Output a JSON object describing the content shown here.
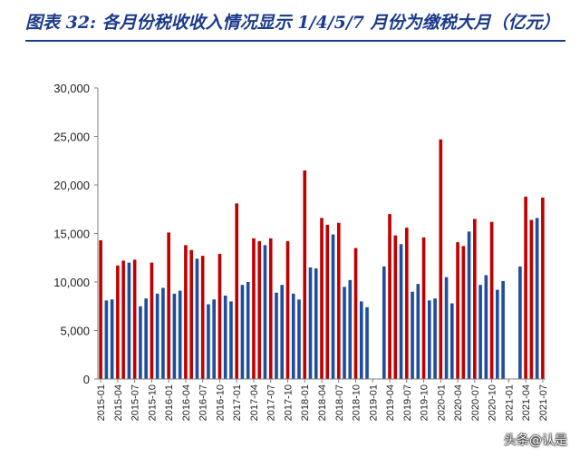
{
  "title": "图表 32:  各月份税收收入情况显示 1/4/5/7 月份为缴税大月（亿元）",
  "watermark": "头条@认是",
  "chart_data": {
    "type": "bar",
    "title": "图表 32:  各月份税收收入情况显示 1/4/5/7 月份为缴税大月（亿元）",
    "xlabel": "",
    "ylabel": "",
    "ylim": [
      0,
      30000
    ],
    "yticks": [
      "0",
      "5,000",
      "10,000",
      "15,000",
      "20,000",
      "25,000",
      "30,000"
    ],
    "grid": false,
    "legend": "none",
    "colors": {
      "major_month": "#c00000",
      "other_month": "#1f4e9c"
    },
    "x_tick_labels": [
      "2015-01",
      "2015-04",
      "2015-07",
      "2015-10",
      "2016-01",
      "2016-04",
      "2016-07",
      "2016-10",
      "2017-01",
      "2017-04",
      "2017-07",
      "2017-10",
      "2018-01",
      "2018-04",
      "2018-07",
      "2018-10",
      "2019-01",
      "2019-04",
      "2019-07",
      "2019-10",
      "2020-01",
      "2020-04",
      "2020-07",
      "2020-10",
      "2021-01",
      "2021-04",
      "2021-07"
    ],
    "categories": [
      "2015-01",
      "2015-02",
      "2015-03",
      "2015-04",
      "2015-05",
      "2015-06",
      "2015-07",
      "2015-08",
      "2015-09",
      "2015-10",
      "2015-11",
      "2015-12",
      "2016-01",
      "2016-02",
      "2016-03",
      "2016-04",
      "2016-05",
      "2016-06",
      "2016-07",
      "2016-08",
      "2016-09",
      "2016-10",
      "2016-11",
      "2016-12",
      "2017-01",
      "2017-02",
      "2017-03",
      "2017-04",
      "2017-05",
      "2017-06",
      "2017-07",
      "2017-08",
      "2017-09",
      "2017-10",
      "2017-11",
      "2017-12",
      "2018-01",
      "2018-02",
      "2018-03",
      "2018-04",
      "2018-05",
      "2018-06",
      "2018-07",
      "2018-08",
      "2018-09",
      "2018-10",
      "2018-11",
      "2018-12",
      "2019-01",
      "2019-02",
      "2019-03",
      "2019-04",
      "2019-05",
      "2019-06",
      "2019-07",
      "2019-08",
      "2019-09",
      "2019-10",
      "2019-11",
      "2019-12",
      "2020-01",
      "2020-02",
      "2020-03",
      "2020-04",
      "2020-05",
      "2020-06",
      "2020-07",
      "2020-08",
      "2020-09",
      "2020-10",
      "2020-11",
      "2020-12",
      "2021-01",
      "2021-02",
      "2021-03",
      "2021-04",
      "2021-05",
      "2021-06",
      "2021-07"
    ],
    "values": [
      14300,
      8100,
      8200,
      11700,
      12200,
      12000,
      12300,
      7500,
      8300,
      12000,
      8800,
      9400,
      15100,
      8800,
      9100,
      13800,
      13300,
      12400,
      12700,
      7700,
      8200,
      12900,
      8600,
      8000,
      18100,
      9700,
      10000,
      14500,
      14200,
      13800,
      14500,
      8900,
      9700,
      14200,
      8800,
      8200,
      21500,
      11500,
      11400,
      16600,
      15900,
      14900,
      16100,
      9500,
      10200,
      13500,
      8000,
      7400,
      null,
      null,
      11600,
      17000,
      14800,
      13900,
      15600,
      9000,
      9800,
      14600,
      8100,
      8300,
      24700,
      10500,
      7800,
      14100,
      13700,
      15200,
      16500,
      9700,
      10700,
      16200,
      9200,
      10100,
      null,
      null,
      11600,
      18800,
      16400,
      16600,
      18700
    ],
    "major_flags": [
      1,
      0,
      0,
      1,
      1,
      0,
      1,
      0,
      0,
      1,
      0,
      0,
      1,
      0,
      0,
      1,
      1,
      0,
      1,
      0,
      0,
      1,
      0,
      0,
      1,
      0,
      0,
      1,
      1,
      0,
      1,
      0,
      0,
      1,
      0,
      0,
      1,
      0,
      0,
      1,
      1,
      0,
      1,
      0,
      0,
      1,
      0,
      0,
      1,
      0,
      0,
      1,
      1,
      0,
      1,
      0,
      0,
      1,
      0,
      0,
      1,
      0,
      0,
      1,
      1,
      0,
      1,
      0,
      0,
      1,
      0,
      0,
      1,
      0,
      0,
      1,
      1,
      0,
      1
    ]
  }
}
